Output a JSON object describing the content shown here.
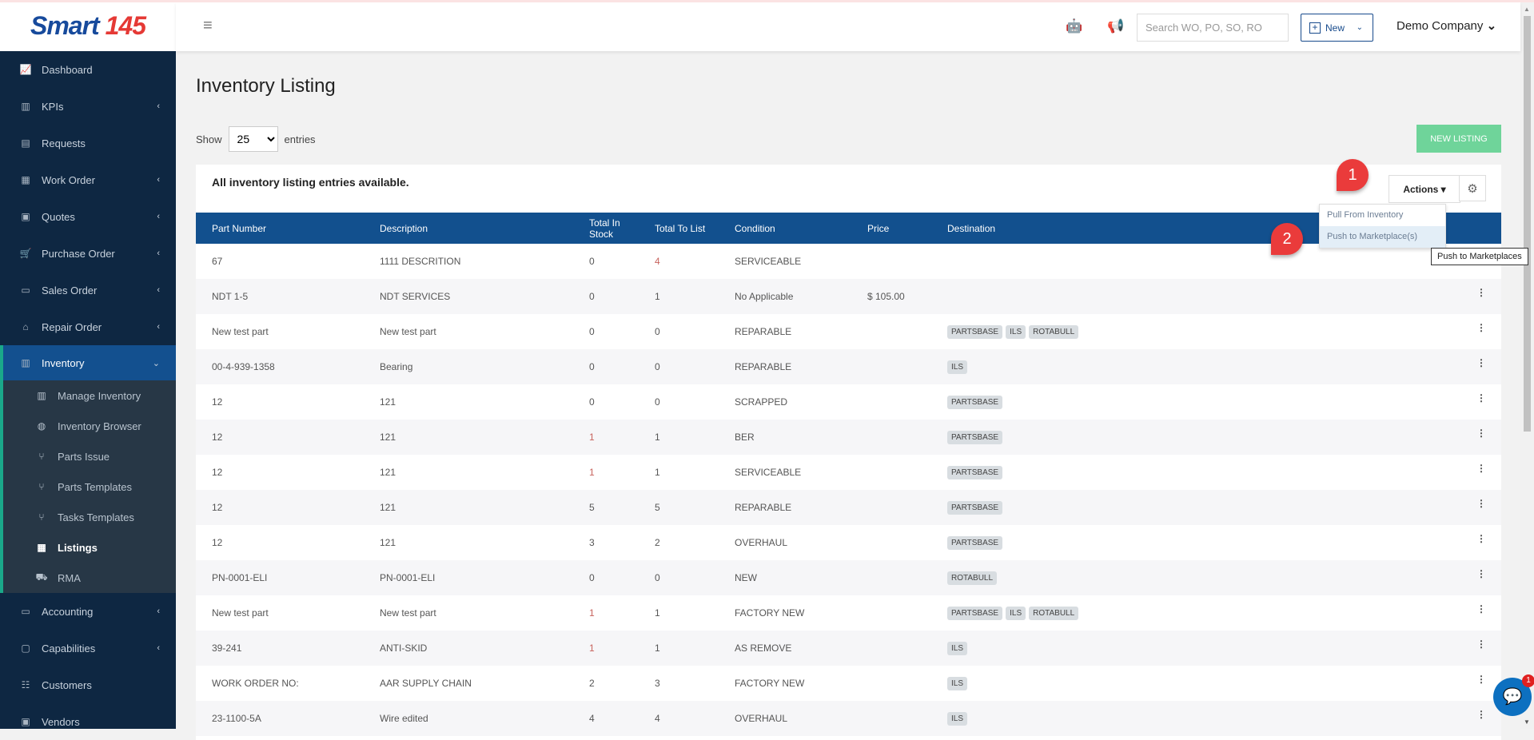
{
  "brand": {
    "logo": "Smart 145",
    "accent": "#12508e"
  },
  "sidebar": {
    "items": [
      {
        "label": "Dashboard",
        "icon": "chart-icon",
        "chev": false
      },
      {
        "label": "KPIs",
        "icon": "kpi-icon",
        "chev": true
      },
      {
        "label": "Requests",
        "icon": "document-icon",
        "chev": false
      },
      {
        "label": "Work Order",
        "icon": "list-icon",
        "chev": true
      },
      {
        "label": "Quotes",
        "icon": "quote-icon",
        "chev": true
      },
      {
        "label": "Purchase Order",
        "icon": "cart-icon",
        "chev": true
      },
      {
        "label": "Sales Order",
        "icon": "card-icon",
        "chev": true
      },
      {
        "label": "Repair Order",
        "icon": "toolbox-icon",
        "chev": true
      },
      {
        "label": "Inventory",
        "icon": "inventory-icon",
        "chev": true,
        "active": true
      }
    ],
    "submenu": [
      {
        "label": "Manage Inventory",
        "icon": "inventory-icon"
      },
      {
        "label": "Inventory Browser",
        "icon": "globe-icon"
      },
      {
        "label": "Parts Issue",
        "icon": "branch-icon"
      },
      {
        "label": "Parts Templates",
        "icon": "branch-icon"
      },
      {
        "label": "Tasks Templates",
        "icon": "branch-icon"
      },
      {
        "label": "Listings",
        "icon": "list-icon",
        "active": true
      },
      {
        "label": "RMA",
        "icon": "truck-icon"
      }
    ],
    "bottom": [
      {
        "label": "Accounting",
        "icon": "accounting-icon",
        "chev": true
      },
      {
        "label": "Capabilities",
        "icon": "box-icon",
        "chev": true
      },
      {
        "label": "Customers",
        "icon": "customers-icon",
        "chev": false
      },
      {
        "label": "Vendors",
        "icon": "vendor-icon",
        "chev": false
      }
    ]
  },
  "header": {
    "search_placeholder": "Search WO, PO, SO, RO",
    "new_label": "New",
    "company": "Demo Company"
  },
  "page": {
    "title": "Inventory Listing",
    "show": "Show",
    "entries": "entries",
    "page_size": "25",
    "new_listing": "NEW LISTING",
    "card_title": "All inventory listing entries available.",
    "actions": "Actions"
  },
  "menu": {
    "items": [
      "Pull From Inventory",
      "Push to Marketplace(s)"
    ],
    "tooltip": "Push to Marketplaces"
  },
  "markers": [
    "1",
    "2"
  ],
  "table": {
    "columns": [
      "Part Number",
      "Description",
      "Total In Stock",
      "Total To List",
      "Condition",
      "Price",
      "Destination"
    ],
    "rows": [
      [
        "67",
        "1111 DESCRITION",
        "0",
        "4",
        "SERVICEABLE",
        "",
        []
      ],
      [
        "NDT 1-5",
        "NDT SERVICES",
        "0",
        "1",
        "No Applicable",
        "$ 105.00",
        []
      ],
      [
        "New test part",
        "New test part",
        "0",
        "0",
        "REPARABLE",
        "",
        [
          "PARTSBASE",
          "ILS",
          "ROTABULL"
        ]
      ],
      [
        "00-4-939-1358",
        "Bearing",
        "0",
        "0",
        "REPARABLE",
        "",
        [
          "ILS"
        ]
      ],
      [
        "12",
        "121",
        "0",
        "0",
        "SCRAPPED",
        "",
        [
          "PARTSBASE"
        ]
      ],
      [
        "12",
        "121",
        "1",
        "1",
        "BER",
        "",
        [
          "PARTSBASE"
        ]
      ],
      [
        "12",
        "121",
        "1",
        "1",
        "SERVICEABLE",
        "",
        [
          "PARTSBASE"
        ]
      ],
      [
        "12",
        "121",
        "5",
        "5",
        "REPARABLE",
        "",
        [
          "PARTSBASE"
        ]
      ],
      [
        "12",
        "121",
        "3",
        "2",
        "OVERHAUL",
        "",
        [
          "PARTSBASE"
        ]
      ],
      [
        "PN-0001-ELI",
        "PN-0001-ELI",
        "0",
        "0",
        "NEW",
        "",
        [
          "ROTABULL"
        ]
      ],
      [
        "New test part",
        "New test part",
        "1",
        "1",
        "FACTORY NEW",
        "",
        [
          "PARTSBASE",
          "ILS",
          "ROTABULL"
        ]
      ],
      [
        "39-241",
        "ANTI-SKID",
        "1",
        "1",
        "AS REMOVE",
        "",
        [
          "ILS"
        ]
      ],
      [
        "WORK ORDER NO:",
        "AAR SUPPLY CHAIN",
        "2",
        "3",
        "FACTORY NEW",
        "",
        [
          "ILS"
        ]
      ],
      [
        "23-1100-5A",
        "Wire edited",
        "4",
        "4",
        "OVERHAUL",
        "",
        [
          "ILS"
        ]
      ]
    ]
  },
  "chat": {
    "count": "1"
  }
}
